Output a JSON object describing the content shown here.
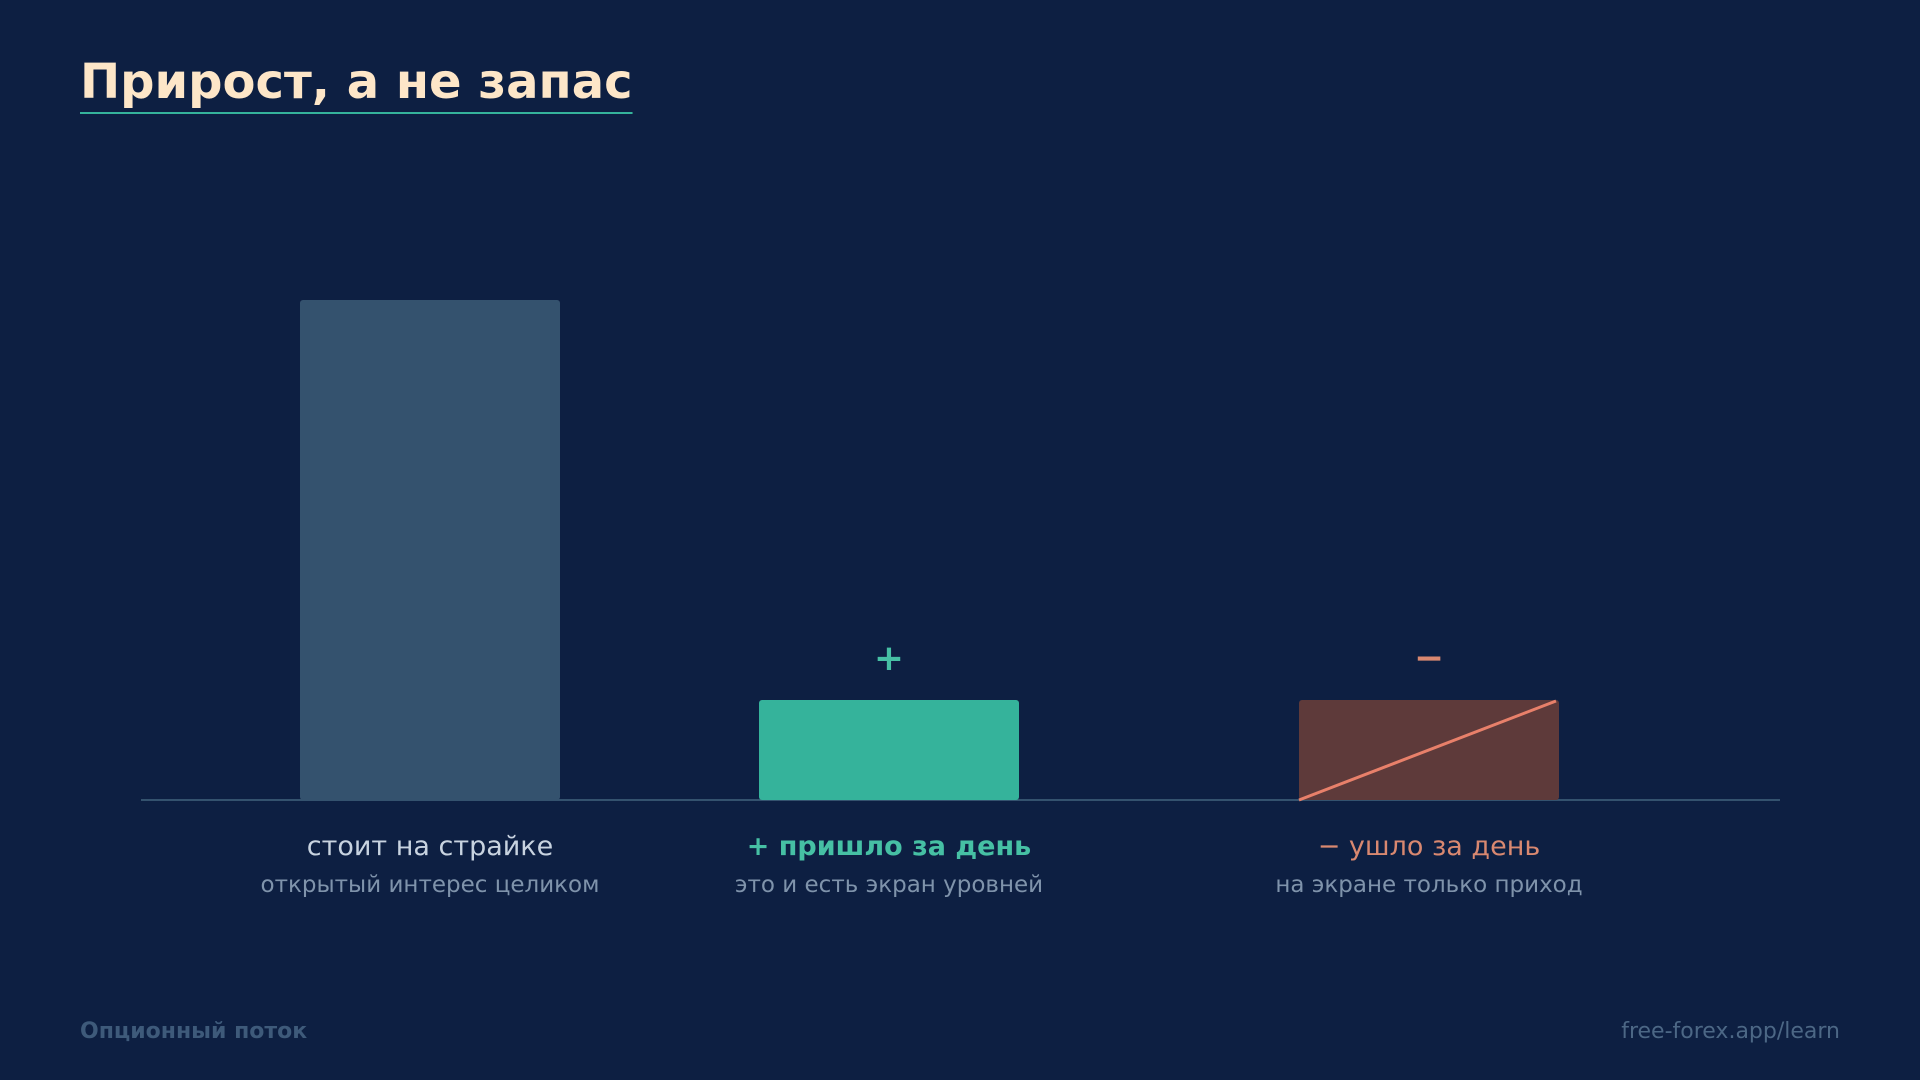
{
  "chart_data": {
    "type": "bar",
    "title": "Прирост, а не запас",
    "categories": [
      "стоит на страйке",
      "+ пришло за день",
      "− ушло за день"
    ],
    "sublabels": [
      "открытый интерес целиком",
      "это и есть экран уровней",
      "на экране только приход"
    ],
    "markers": [
      null,
      "+",
      "−"
    ],
    "values": [
      100,
      20,
      20
    ],
    "colors": [
      "#34526e",
      "#35b39b",
      "#5e3a3a"
    ],
    "label_colors": [
      "#c8d3e0",
      "#46c0a4",
      "#d98870"
    ],
    "label_bold": [
      false,
      true,
      false
    ],
    "struck": [
      false,
      false,
      true
    ],
    "strike_color": "#e8806a"
  },
  "footer": {
    "left": "Опционный поток",
    "right": "free-forex.app/learn"
  }
}
